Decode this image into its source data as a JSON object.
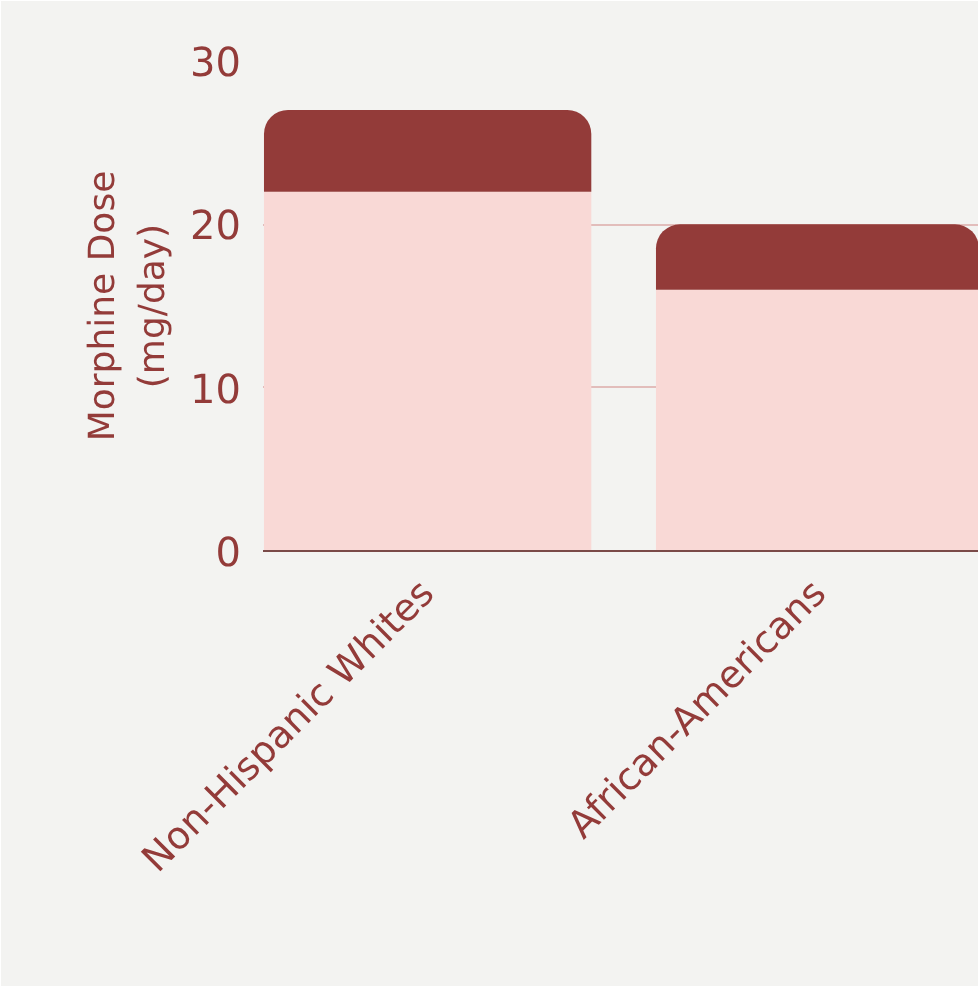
{
  "chart_data": {
    "type": "bar",
    "stacked": true,
    "ylabel": "Morphine Dose\n(mg/day)",
    "categories": [
      "Non-Hispanic Whites",
      "African-Americans"
    ],
    "series": [
      {
        "color": "#f9d9d6",
        "values": [
          22,
          16
        ]
      },
      {
        "color": "#933b39",
        "values": [
          5,
          4
        ]
      }
    ],
    "ylim": [
      0,
      30
    ],
    "yticks": [
      0,
      10,
      20,
      30
    ],
    "grid": "y"
  }
}
